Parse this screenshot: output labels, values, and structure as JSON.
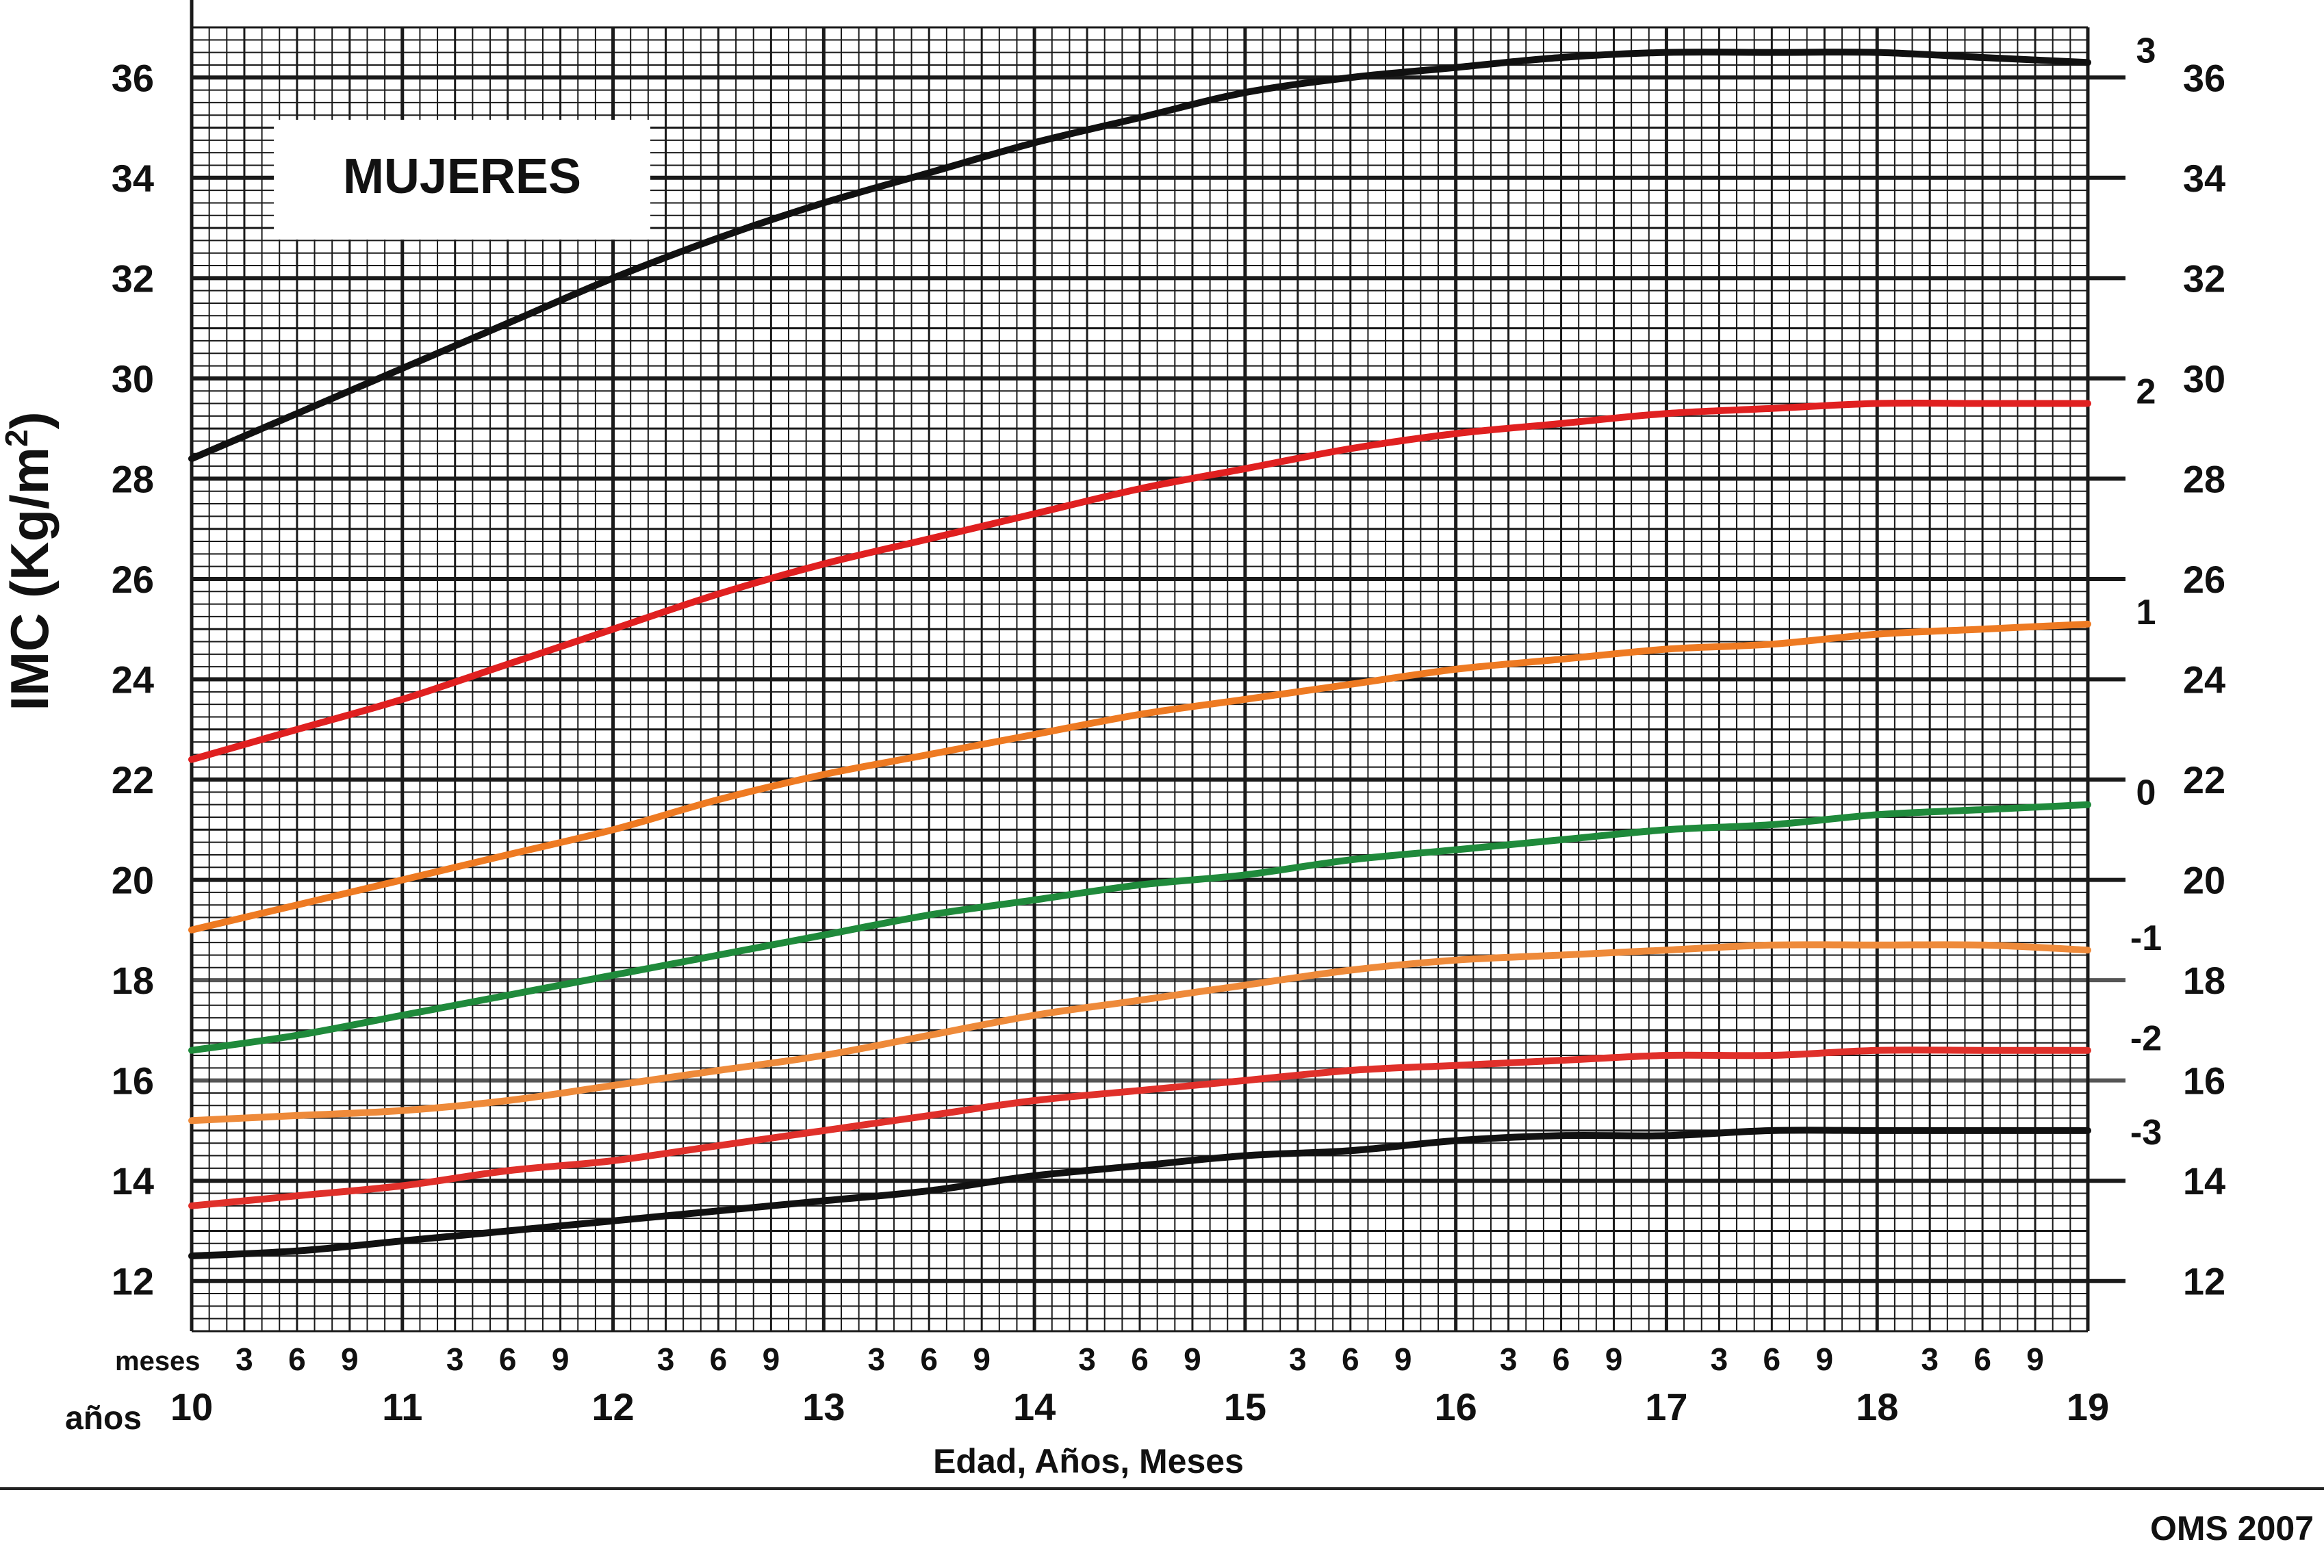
{
  "chart_data": {
    "type": "line",
    "title": "MUJERES",
    "ylabel_main": "IMC (Kg/m",
    "ylabel_sup": "2",
    "ylabel_close": ")",
    "xlabel": "Edad, Años, Meses",
    "months_label": "meses",
    "years_label": "años",
    "source": "OMS 2007",
    "xlim": [
      10,
      19
    ],
    "ylim": [
      11,
      37
    ],
    "x_major": [
      10,
      11,
      12,
      13,
      14,
      15,
      16,
      17,
      18,
      19
    ],
    "x_month_labels": [
      "3",
      "6",
      "9"
    ],
    "y_ticks": [
      12,
      14,
      16,
      18,
      20,
      22,
      24,
      26,
      28,
      30,
      32,
      34,
      36
    ],
    "grid": true,
    "series": [
      {
        "name": "3",
        "color": "#111111",
        "x": [
          10,
          10.5,
          11,
          11.5,
          12,
          12.5,
          13,
          13.5,
          14,
          14.5,
          15,
          15.5,
          16,
          16.5,
          17,
          17.5,
          18,
          18.5,
          19
        ],
        "y": [
          28.4,
          29.3,
          30.2,
          31.1,
          32.0,
          32.8,
          33.5,
          34.1,
          34.7,
          35.2,
          35.7,
          36.0,
          36.2,
          36.4,
          36.5,
          36.5,
          36.5,
          36.4,
          36.3
        ]
      },
      {
        "name": "2",
        "color": "#e02020",
        "x": [
          10,
          10.5,
          11,
          11.5,
          12,
          12.5,
          13,
          13.5,
          14,
          14.5,
          15,
          15.5,
          16,
          16.5,
          17,
          17.5,
          18,
          18.5,
          19
        ],
        "y": [
          22.4,
          23.0,
          23.6,
          24.3,
          25.0,
          25.7,
          26.3,
          26.8,
          27.3,
          27.8,
          28.2,
          28.6,
          28.9,
          29.1,
          29.3,
          29.4,
          29.5,
          29.5,
          29.5
        ]
      },
      {
        "name": "1",
        "color": "#ee7a22",
        "x": [
          10,
          10.5,
          11,
          11.5,
          12,
          12.5,
          13,
          13.5,
          14,
          14.5,
          15,
          15.5,
          16,
          16.5,
          17,
          17.5,
          18,
          18.5,
          19
        ],
        "y": [
          19.0,
          19.5,
          20.0,
          20.5,
          21.0,
          21.6,
          22.1,
          22.5,
          22.9,
          23.3,
          23.6,
          23.9,
          24.2,
          24.4,
          24.6,
          24.7,
          24.9,
          25.0,
          25.1
        ]
      },
      {
        "name": "0",
        "color": "#1f8a3b",
        "x": [
          10,
          10.5,
          11,
          11.5,
          12,
          12.5,
          13,
          13.5,
          14,
          14.5,
          15,
          15.5,
          16,
          16.5,
          17,
          17.5,
          18,
          18.5,
          19
        ],
        "y": [
          16.6,
          16.9,
          17.3,
          17.7,
          18.1,
          18.5,
          18.9,
          19.3,
          19.6,
          19.9,
          20.1,
          20.4,
          20.6,
          20.8,
          21.0,
          21.1,
          21.3,
          21.4,
          21.5
        ]
      },
      {
        "name": "-1",
        "color": "#ee8a3a",
        "x": [
          10,
          10.5,
          11,
          11.5,
          12,
          12.5,
          13,
          13.5,
          14,
          14.5,
          15,
          15.5,
          16,
          16.5,
          17,
          17.5,
          18,
          18.5,
          19
        ],
        "y": [
          15.2,
          15.3,
          15.4,
          15.6,
          15.9,
          16.2,
          16.5,
          16.9,
          17.3,
          17.6,
          17.9,
          18.2,
          18.4,
          18.5,
          18.6,
          18.7,
          18.7,
          18.7,
          18.6
        ]
      },
      {
        "name": "-2",
        "color": "#e0302a",
        "x": [
          10,
          10.5,
          11,
          11.5,
          12,
          12.5,
          13,
          13.5,
          14,
          14.5,
          15,
          15.5,
          16,
          16.5,
          17,
          17.5,
          18,
          18.5,
          19
        ],
        "y": [
          13.5,
          13.7,
          13.9,
          14.2,
          14.4,
          14.7,
          15.0,
          15.3,
          15.6,
          15.8,
          16.0,
          16.2,
          16.3,
          16.4,
          16.5,
          16.5,
          16.6,
          16.6,
          16.6
        ]
      },
      {
        "name": "-3",
        "color": "#111111",
        "x": [
          10,
          10.5,
          11,
          11.5,
          12,
          12.5,
          13,
          13.5,
          14,
          14.5,
          15,
          15.5,
          16,
          16.5,
          17,
          17.5,
          18,
          18.5,
          19
        ],
        "y": [
          12.5,
          12.6,
          12.8,
          13.0,
          13.2,
          13.4,
          13.6,
          13.8,
          14.1,
          14.3,
          14.5,
          14.6,
          14.8,
          14.9,
          14.9,
          15.0,
          15.0,
          15.0,
          15.0
        ]
      }
    ]
  }
}
